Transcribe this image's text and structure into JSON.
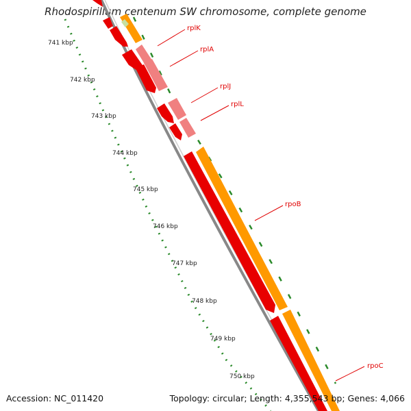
{
  "title": "Rhodospirillum centenum SW chromosome, complete genome",
  "accession": "Accession: NC_011420",
  "summary": "Topology: circular; Length: 4,355,543 bp; Genes: 4,066",
  "kbp_labels": [
    "741 kbp",
    "742 kbp",
    "743 kbp",
    "744 kbp",
    "745 kbp",
    "746 kbp",
    "747 kbp",
    "748 kbp",
    "749 kbp",
    "750 kbp"
  ],
  "genes": [
    {
      "name": "rplK"
    },
    {
      "name": "rplA"
    },
    {
      "name": "rplJ"
    },
    {
      "name": "rplL"
    },
    {
      "name": "rpoB"
    },
    {
      "name": "rpoC"
    }
  ],
  "colors": {
    "cds": "#e80000",
    "rrna_light": "#f08080",
    "orange": "#ff9900",
    "backbone": "#888888",
    "tick": "#2a8a2a",
    "label": "#e00000"
  }
}
